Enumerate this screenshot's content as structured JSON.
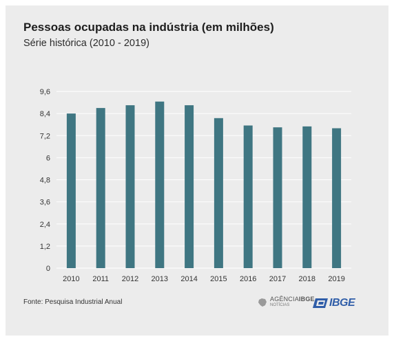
{
  "chart_data": {
    "type": "bar",
    "title": "Pessoas ocupadas na indústria (em milhões)",
    "subtitle": "Série histórica (2010 - 2019)",
    "categories": [
      "2010",
      "2011",
      "2012",
      "2013",
      "2014",
      "2015",
      "2016",
      "2017",
      "2018",
      "2019"
    ],
    "values": [
      8.4,
      8.7,
      8.85,
      9.05,
      8.85,
      8.15,
      7.75,
      7.65,
      7.7,
      7.6
    ],
    "yticks": [
      "0",
      "1,2",
      "2,4",
      "3,6",
      "4,8",
      "6",
      "7,2",
      "8,4",
      "9,6"
    ],
    "ylim": [
      0,
      9.6
    ],
    "grid": true,
    "bar_color": "#3f7682",
    "grid_color": "#ffffff"
  },
  "source": "Fonte: Pesquisa Industrial Anual",
  "logos": {
    "agencia_line1": "AGÊNCIA",
    "agencia_line1_bold": "IBGE",
    "agencia_line2": "NOTÍCIAS",
    "ibge": "IBGE"
  }
}
